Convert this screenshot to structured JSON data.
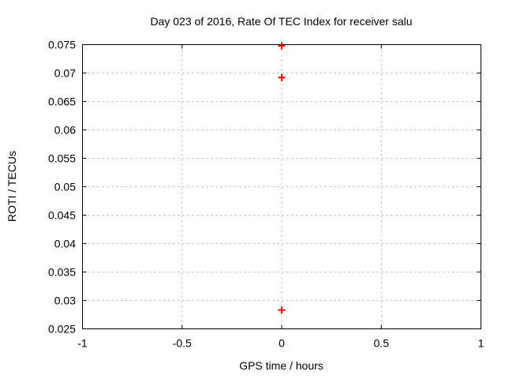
{
  "chart_data": {
    "type": "scatter",
    "title": "Day 023 of 2016, Rate Of TEC Index for receiver salu",
    "xlabel": "GPS time / hours",
    "ylabel": "ROTI / TECUs",
    "xlim": [
      -1,
      1
    ],
    "ylim": [
      0.025,
      0.075
    ],
    "x_ticks": [
      -1,
      -0.5,
      0,
      0.5,
      1
    ],
    "x_tick_labels": [
      "-1",
      "-0.5",
      "0",
      "0.5",
      "1"
    ],
    "y_ticks": [
      0.025,
      0.03,
      0.035,
      0.04,
      0.045,
      0.05,
      0.055,
      0.06,
      0.065,
      0.07,
      0.075
    ],
    "y_tick_labels": [
      "0.025",
      "0.03",
      "0.035",
      "0.04",
      "0.045",
      "0.05",
      "0.055",
      "0.06",
      "0.065",
      "0.07",
      "0.075"
    ],
    "grid": true,
    "legend_position": "none",
    "marker": "plus",
    "colors": {
      "marker": "#e60000",
      "grid": "#b0b0b0",
      "border": "#000000",
      "text": "#000000",
      "background": "#ffffff"
    },
    "series": [
      {
        "name": "ROTI",
        "points": [
          {
            "x": 0,
            "y": 0.0748
          },
          {
            "x": 0,
            "y": 0.0692
          },
          {
            "x": 0,
            "y": 0.0283
          }
        ]
      }
    ]
  }
}
